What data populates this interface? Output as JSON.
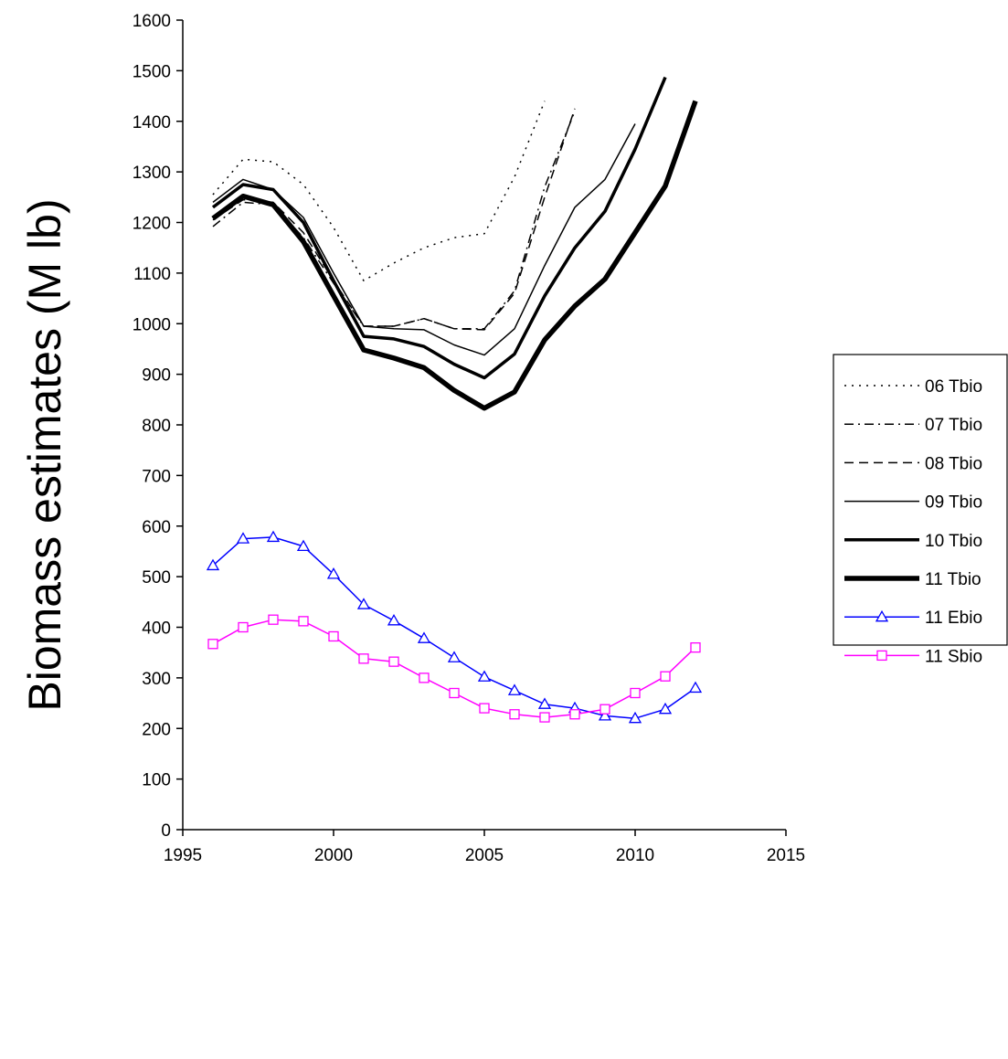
{
  "chart_data": {
    "type": "line",
    "title": "",
    "xlabel": "",
    "ylabel": "Biomass estimates (M lb)",
    "xlim": [
      1995,
      2015
    ],
    "ylim": [
      0,
      1600
    ],
    "xticks": [
      1995,
      2000,
      2005,
      2010,
      2015
    ],
    "yticks": [
      0,
      100,
      200,
      300,
      400,
      500,
      600,
      700,
      800,
      900,
      1000,
      1100,
      1200,
      1300,
      1400,
      1500,
      1600
    ],
    "grid": false,
    "legend_position": "right",
    "series": [
      {
        "name": "06 Tbio",
        "color": "#000000",
        "dash": "dotted",
        "width": 1.5,
        "marker": "none",
        "x": [
          1996,
          1997,
          1998,
          1999,
          2000,
          2001,
          2002,
          2003,
          2004,
          2005,
          2006,
          2007
        ],
        "y": [
          1255,
          1325,
          1320,
          1275,
          1190,
          1085,
          1120,
          1150,
          1170,
          1178,
          1290,
          1440
        ]
      },
      {
        "name": "07 Tbio",
        "color": "#000000",
        "dash": "dashdot",
        "width": 1.5,
        "marker": "none",
        "x": [
          1996,
          1997,
          1998,
          1999,
          2000,
          2001,
          2002,
          2003,
          2004,
          2005,
          2006,
          2007,
          2008
        ],
        "y": [
          1192,
          1240,
          1235,
          1170,
          1080,
          995,
          995,
          1010,
          990,
          990,
          1065,
          1270,
          1420
        ]
      },
      {
        "name": "08 Tbio",
        "color": "#000000",
        "dash": "dashed",
        "width": 1.5,
        "marker": "none",
        "x": [
          1996,
          1997,
          1998,
          1999,
          2000,
          2001,
          2002,
          2003,
          2004,
          2005,
          2006,
          2007,
          2008
        ],
        "y": [
          1205,
          1245,
          1240,
          1180,
          1085,
          995,
          995,
          1010,
          990,
          988,
          1060,
          1250,
          1425
        ]
      },
      {
        "name": "09 Tbio",
        "color": "#000000",
        "dash": "solid",
        "width": 1.5,
        "marker": "none",
        "x": [
          1996,
          1997,
          1998,
          1999,
          2000,
          2001,
          2002,
          2003,
          2004,
          2005,
          2006,
          2007,
          2008,
          2009,
          2010
        ],
        "y": [
          1240,
          1285,
          1265,
          1210,
          1100,
          995,
          990,
          988,
          958,
          938,
          990,
          1115,
          1230,
          1285,
          1395
        ]
      },
      {
        "name": "10 Tbio",
        "color": "#000000",
        "dash": "solid",
        "width": 3.5,
        "marker": "none",
        "x": [
          1996,
          1997,
          1998,
          1999,
          2000,
          2001,
          2002,
          2003,
          2004,
          2005,
          2006,
          2007,
          2008,
          2009,
          2010,
          2011
        ],
        "y": [
          1230,
          1275,
          1265,
          1200,
          1085,
          975,
          970,
          955,
          920,
          893,
          940,
          1055,
          1150,
          1222,
          1345,
          1487
        ]
      },
      {
        "name": "11 Tbio",
        "color": "#000000",
        "dash": "solid",
        "width": 5.5,
        "marker": "none",
        "x": [
          1996,
          1997,
          1998,
          1999,
          2000,
          2001,
          2002,
          2003,
          2004,
          2005,
          2006,
          2007,
          2008,
          2009,
          2010,
          2011,
          2012
        ],
        "y": [
          1208,
          1252,
          1235,
          1162,
          1055,
          948,
          932,
          913,
          868,
          833,
          865,
          968,
          1035,
          1088,
          1180,
          1272,
          1440
        ]
      },
      {
        "name": "11 Ebio",
        "color": "#0000ff",
        "dash": "solid",
        "width": 1.5,
        "marker": "triangle",
        "x": [
          1996,
          1997,
          1998,
          1999,
          2000,
          2001,
          2002,
          2003,
          2004,
          2005,
          2006,
          2007,
          2008,
          2009,
          2010,
          2011,
          2012
        ],
        "y": [
          522,
          575,
          578,
          560,
          505,
          445,
          413,
          378,
          340,
          302,
          275,
          248,
          240,
          225,
          220,
          238,
          280
        ]
      },
      {
        "name": "11 Sbio",
        "color": "#ff00ff",
        "dash": "solid",
        "width": 1.5,
        "marker": "square",
        "x": [
          1996,
          1997,
          1998,
          1999,
          2000,
          2001,
          2002,
          2003,
          2004,
          2005,
          2006,
          2007,
          2008,
          2009,
          2010,
          2011,
          2012
        ],
        "y": [
          367,
          400,
          415,
          412,
          382,
          338,
          332,
          300,
          270,
          240,
          228,
          222,
          228,
          238,
          270,
          303,
          360
        ]
      }
    ]
  }
}
